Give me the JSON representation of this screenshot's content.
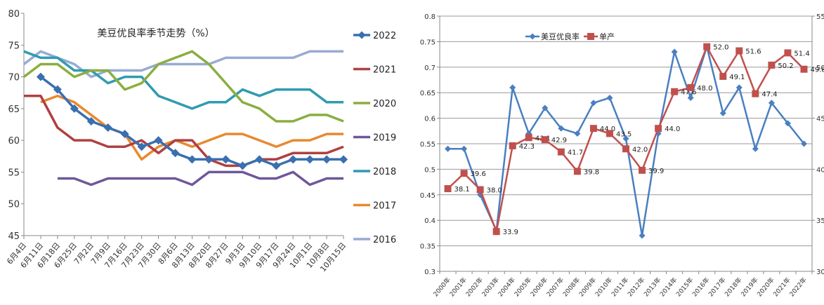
{
  "chart_data": [
    {
      "type": "line",
      "title": "美豆优良率季节走势（%）",
      "xlabel": "",
      "ylabel": "",
      "ylim": [
        45,
        80
      ],
      "yticks": [
        45,
        50,
        55,
        60,
        65,
        70,
        75,
        80
      ],
      "grid": false,
      "legend_position": "right",
      "categories": [
        "6月4日",
        "6月11日",
        "6月18日",
        "6月25日",
        "7月2日",
        "7月9日",
        "7月16日",
        "7月23日",
        "7月30日",
        "8月6日",
        "8月13日",
        "8月20日",
        "8月27日",
        "9月3日",
        "9月10日",
        "9月17日",
        "9月24日",
        "10月1日",
        "10月8日",
        "10月15日"
      ],
      "series": [
        {
          "name": "2022",
          "color": "#3a6fb0",
          "marker": "diamond",
          "values": [
            null,
            70,
            68,
            65,
            63,
            62,
            61,
            59,
            60,
            58,
            57,
            57,
            57,
            56,
            57,
            56,
            57,
            57,
            57,
            57
          ]
        },
        {
          "name": "2021",
          "color": "#b04040",
          "marker": "none",
          "values": [
            67,
            67,
            62,
            60,
            60,
            59,
            59,
            60,
            58,
            60,
            60,
            57,
            56,
            56,
            57,
            57,
            58,
            58,
            58,
            59
          ]
        },
        {
          "name": "2020",
          "color": "#8aae3e",
          "marker": "none",
          "values": [
            70,
            72,
            72,
            70,
            71,
            71,
            68,
            69,
            72,
            73,
            74,
            72,
            69,
            66,
            65,
            63,
            63,
            64,
            64,
            63
          ]
        },
        {
          "name": "2019",
          "color": "#6e579a",
          "marker": "none",
          "values": [
            null,
            null,
            54,
            54,
            53,
            54,
            54,
            54,
            54,
            54,
            53,
            55,
            55,
            55,
            54,
            54,
            55,
            53,
            54,
            54
          ]
        },
        {
          "name": "2018",
          "color": "#2f9bb0",
          "marker": "none",
          "values": [
            74,
            73,
            73,
            71,
            71,
            69,
            70,
            70,
            67,
            66,
            65,
            66,
            66,
            68,
            67,
            68,
            68,
            68,
            66,
            66
          ]
        },
        {
          "name": "2017",
          "color": "#e8892f",
          "marker": "none",
          "values": [
            null,
            66,
            67,
            66,
            64,
            62,
            61,
            57,
            59,
            60,
            59,
            60,
            61,
            61,
            60,
            59,
            60,
            60,
            61,
            61
          ]
        },
        {
          "name": "2016",
          "color": "#98aad4",
          "marker": "none",
          "values": [
            72,
            74,
            73,
            72,
            70,
            71,
            71,
            71,
            72,
            72,
            72,
            72,
            73,
            73,
            73,
            73,
            73,
            74,
            74,
            74
          ]
        }
      ]
    },
    {
      "type": "line",
      "title": "",
      "xlabel": "",
      "ylabel": "",
      "ylim": [
        0.3,
        0.8
      ],
      "yticks": [
        0.3,
        0.35,
        0.4,
        0.45,
        0.5,
        0.55,
        0.6,
        0.65,
        0.7,
        0.75,
        0.8
      ],
      "y2lim": [
        30,
        55
      ],
      "y2ticks": [
        30,
        35,
        40,
        45,
        50,
        55
      ],
      "grid": true,
      "legend_position": "top",
      "categories": [
        "2000年",
        "2001年",
        "2002年",
        "2003年",
        "2004年",
        "2005年",
        "2006年",
        "2007年",
        "2008年",
        "2009年",
        "2010年",
        "2011年",
        "2012年",
        "2013年",
        "2014年",
        "2015年",
        "2016年",
        "2017年",
        "2018年",
        "2019年",
        "2020年",
        "2021年",
        "2022年"
      ],
      "series": [
        {
          "name": "美豆优良率",
          "axis": "left",
          "color": "#4a7fc1",
          "marker": "diamond",
          "values": [
            0.54,
            0.54,
            0.45,
            0.38,
            0.66,
            0.57,
            0.62,
            0.58,
            0.57,
            0.63,
            0.64,
            0.56,
            0.37,
            0.57,
            0.73,
            0.64,
            0.74,
            0.61,
            0.66,
            0.54,
            0.63,
            0.59,
            0.55
          ]
        },
        {
          "name": "单产",
          "axis": "right",
          "color": "#c0504d",
          "marker": "square",
          "values": [
            38.1,
            39.6,
            38.0,
            33.9,
            42.3,
            43.1,
            42.9,
            41.7,
            39.8,
            44.0,
            43.5,
            42.0,
            39.9,
            44.0,
            47.6,
            48.0,
            52.0,
            49.1,
            51.6,
            47.4,
            50.2,
            51.4,
            49.8
          ],
          "labels": [
            "38.1",
            "39.6",
            "38.0",
            "33.9",
            "42.3",
            "43.1",
            "42.9",
            "41.7",
            "39.8",
            "44.0",
            "43.5",
            "42.0",
            "39.9",
            "44.0",
            "47.6",
            "48.0",
            "52.0",
            "49.1",
            "51.6",
            "47.4",
            "50.2",
            "51.4",
            "49.8"
          ]
        }
      ]
    }
  ]
}
